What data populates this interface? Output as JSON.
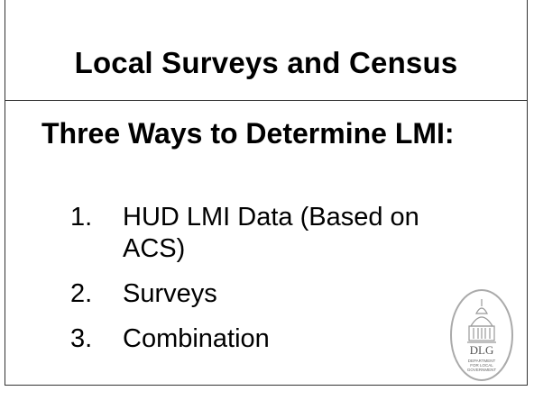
{
  "title": "Local Surveys and Census",
  "heading": "Three Ways to Determine LMI:",
  "list": [
    {
      "marker": "1.",
      "text": "HUD LMI Data (Based on ACS)"
    },
    {
      "marker": "2.",
      "text": "Surveys"
    },
    {
      "marker": "3.",
      "text": "Combination"
    }
  ],
  "logo": {
    "abbr": "DLG",
    "lines": [
      "DEPARTMENT",
      "FOR LOCAL",
      "GOVERNMENT"
    ]
  }
}
